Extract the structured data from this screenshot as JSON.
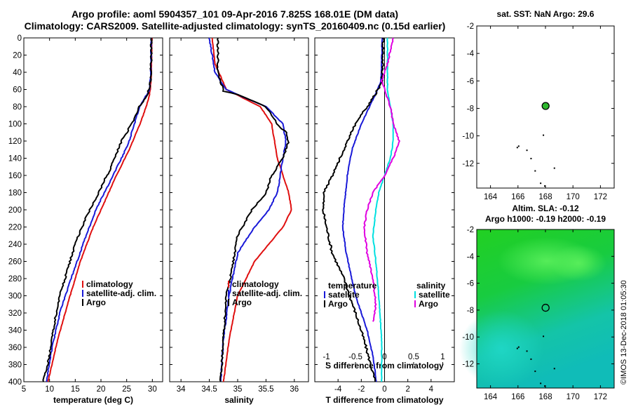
{
  "header": {
    "title_line1": "Argo profile: aoml 5904357_101 09-Apr-2016 7.825S 168.01E (DM data)",
    "title_line2": "Climatology: CARS2009. Satellite-adjusted climatology: synTS_20160409.nc (0.15d earlier)"
  },
  "colors": {
    "climatology": "#e01010",
    "satellite": "#1a1ad8",
    "argo": "#000000",
    "sal_diff": "#00e0e0",
    "temp_diff": "#e000e0",
    "dot": "#2db82d"
  },
  "chart_data": [
    {
      "type": "line",
      "name": "temperature",
      "xlabel": "temperature (deg C)",
      "ylabel": "",
      "xlim": [
        5,
        32
      ],
      "ylim": [
        400,
        0
      ],
      "xticks": [
        5,
        10,
        15,
        20,
        25,
        30
      ],
      "yticks": [
        0,
        20,
        40,
        60,
        80,
        100,
        120,
        140,
        160,
        180,
        200,
        220,
        240,
        260,
        280,
        300,
        320,
        340,
        360,
        380,
        400
      ],
      "legend": [
        "climatology",
        "satellite-adj. clim.",
        "Argo"
      ],
      "series": [
        {
          "name": "climatology",
          "depth": [
            0,
            40,
            60,
            70,
            80,
            100,
            130,
            160,
            200,
            220,
            260,
            300,
            350,
            400
          ],
          "values": [
            29.9,
            29.8,
            29.6,
            29.3,
            28.8,
            27.6,
            25.5,
            23.0,
            20.0,
            18.5,
            16.0,
            14.0,
            11.6,
            9.7
          ]
        },
        {
          "name": "satellite-adj. clim.",
          "depth": [
            0,
            40,
            60,
            70,
            80,
            100,
            120,
            140,
            170,
            200,
            240,
            280,
            320,
            360,
            400
          ],
          "values": [
            29.8,
            29.7,
            29.5,
            28.5,
            27.5,
            26.5,
            25.5,
            24.0,
            21.5,
            19.0,
            16.5,
            14.2,
            12.0,
            10.5,
            9.4
          ]
        },
        {
          "name": "Argo",
          "depth": [
            0,
            50,
            66,
            80,
            100,
            120,
            150,
            180,
            210,
            240,
            270,
            300,
            330,
            370,
            400
          ],
          "values": [
            29.8,
            29.7,
            29.0,
            27.5,
            26.0,
            24.0,
            22.0,
            19.5,
            17.0,
            15.0,
            13.5,
            12.0,
            11.0,
            10.0,
            8.8
          ]
        }
      ]
    },
    {
      "type": "line",
      "name": "salinity",
      "xlabel": "salinity",
      "ylabel": "",
      "xlim": [
        33.8,
        36.25
      ],
      "ylim": [
        400,
        0
      ],
      "xticks": [
        34,
        34.5,
        35,
        35.5,
        36
      ],
      "legend": [
        "climatology",
        "satellite-adj. clim.",
        "Argo"
      ],
      "series": [
        {
          "name": "climatology",
          "depth": [
            0,
            30,
            60,
            70,
            80,
            100,
            120,
            140,
            160,
            180,
            200,
            220,
            260,
            300,
            350,
            400
          ],
          "values": [
            34.55,
            34.6,
            34.8,
            35.1,
            35.4,
            35.6,
            35.65,
            35.7,
            35.8,
            35.9,
            35.95,
            35.8,
            35.3,
            35.0,
            34.85,
            34.75
          ]
        },
        {
          "name": "satellite-adj. clim.",
          "depth": [
            0,
            40,
            60,
            66,
            80,
            100,
            120,
            140,
            160,
            180,
            200,
            220,
            250,
            300,
            350,
            400
          ],
          "values": [
            34.5,
            34.6,
            34.8,
            35.0,
            35.5,
            35.8,
            35.85,
            35.8,
            35.75,
            35.7,
            35.55,
            35.3,
            35.0,
            34.85,
            34.75,
            34.7
          ]
        },
        {
          "name": "Argo",
          "depth": [
            0,
            40,
            62,
            66,
            80,
            100,
            110,
            120,
            140,
            160,
            180,
            200,
            230,
            270,
            300,
            350,
            400
          ],
          "values": [
            34.65,
            34.65,
            34.75,
            35.0,
            35.5,
            35.7,
            35.85,
            35.9,
            35.8,
            35.6,
            35.5,
            35.25,
            35.0,
            34.9,
            34.8,
            34.75,
            34.7
          ]
        }
      ]
    },
    {
      "type": "line",
      "name": "difference",
      "xlabel": "T difference from climatology",
      "top_xlabel": "S difference from climatology",
      "xlim": [
        -6,
        6
      ],
      "ylim": [
        400,
        0
      ],
      "xticks": [
        -4,
        -2,
        0,
        2,
        4
      ],
      "top_ticks": [
        "-1",
        "-0.5",
        "0",
        "0.5",
        "1"
      ],
      "legend_temperature_title": "temperature",
      "legend_salinity_title": "salinity",
      "legend_items": [
        "satellite",
        "Argo",
        "satellite",
        "Argo"
      ],
      "series": [
        {
          "name": "T satellite",
          "depth": [
            0,
            50,
            66,
            80,
            100,
            130,
            160,
            200,
            220,
            250,
            300,
            340,
            370,
            400
          ],
          "values": [
            -0.2,
            -0.3,
            -0.8,
            -1.3,
            -2.0,
            -2.8,
            -3.2,
            -3.5,
            -3.6,
            -3.3,
            -2.5,
            -1.5,
            -1.0,
            -0.7
          ]
        },
        {
          "name": "T Argo",
          "depth": [
            0,
            50,
            66,
            80,
            100,
            130,
            160,
            180,
            200,
            220,
            250,
            280,
            320,
            350,
            380,
            400
          ],
          "values": [
            -0.1,
            -0.2,
            -0.8,
            -1.5,
            -2.5,
            -3.5,
            -4.5,
            -5.2,
            -5.3,
            -5.0,
            -4.5,
            -3.5,
            -2.5,
            -1.8,
            -1.2,
            -0.8
          ]
        },
        {
          "name": "S satellite",
          "depth": [
            0,
            60,
            80,
            100,
            120,
            140,
            160,
            180,
            200,
            230,
            260,
            300,
            350,
            400
          ],
          "values": [
            0.05,
            0.05,
            0.1,
            0.15,
            0.15,
            0.1,
            0.0,
            -0.1,
            -0.15,
            -0.2,
            -0.15,
            -0.1,
            -0.05,
            -0.05
          ]
        },
        {
          "name": "S Argo",
          "depth": [
            0,
            30,
            50,
            60,
            80,
            100,
            120,
            140,
            160,
            180,
            200,
            220,
            250,
            280,
            310,
            330
          ],
          "values": [
            0.15,
            0.05,
            -0.05,
            0.0,
            0.1,
            0.15,
            0.25,
            0.15,
            0.0,
            -0.2,
            -0.3,
            -0.35,
            -0.3,
            -0.2,
            -0.15,
            -0.2
          ]
        }
      ]
    },
    {
      "type": "scatter",
      "name": "sst map",
      "title": "sat. SST: NaN Argo: 29.6",
      "xlim": [
        163,
        173
      ],
      "ylim": [
        -13.8,
        -2
      ],
      "xticks": [
        164,
        166,
        168,
        170,
        172
      ],
      "yticks": [
        -2,
        -4,
        -6,
        -8,
        -10,
        -12
      ],
      "points": [
        {
          "x": 168.01,
          "y": -7.825,
          "label": "Argo"
        }
      ]
    },
    {
      "type": "heatmap",
      "name": "altimetry map",
      "title": "Altim. SLA: -0.12",
      "subtitle": "Argo h1000: -0.19 h2000: -0.19",
      "xlim": [
        163,
        173
      ],
      "ylim": [
        -13.8,
        -2
      ],
      "xticks": [
        164,
        166,
        168,
        170,
        172
      ],
      "yticks": [
        -2,
        -4,
        -6,
        -8,
        -10,
        -12
      ],
      "points": [
        {
          "x": 168.01,
          "y": -7.825,
          "label": "Argo"
        }
      ]
    }
  ],
  "footer": {
    "stamp": "©IMOS 13-Dec-2018 01:05:30"
  }
}
